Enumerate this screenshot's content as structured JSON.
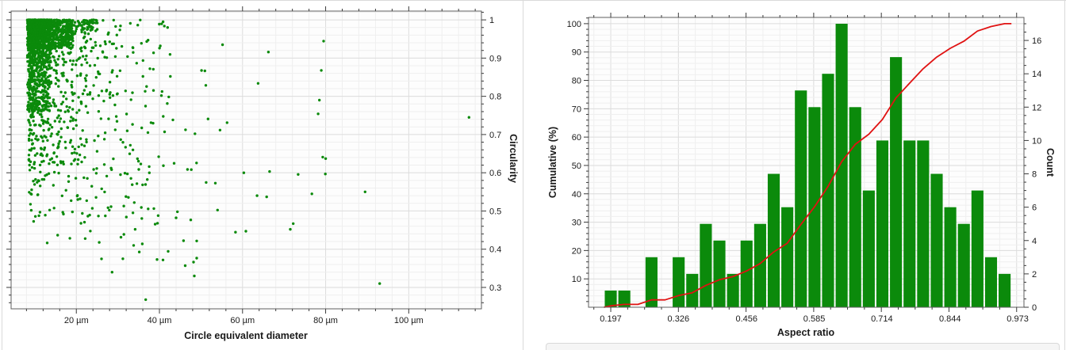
{
  "colors": {
    "point_green": "#0b8a0b",
    "bar_green": "#0b8a0b",
    "cumulative_red": "#e01212",
    "frame": "#5f5f5f",
    "tick": "#3a3a3a",
    "label_text": "#1a1a1a",
    "grid_major": "#dcdcdc",
    "grid_minor": "#efefef",
    "plot_bg": "#fdfdfd"
  },
  "chart_data": [
    {
      "type": "scatter",
      "title": "",
      "xlabel": "Circle equivalent diameter",
      "ylabel": "Circularity",
      "x_unit": "µm",
      "x_ticks": [
        20,
        40,
        60,
        80,
        100
      ],
      "x_tick_labels": [
        "20 µm",
        "40 µm",
        "60 µm",
        "80 µm",
        "100 µm"
      ],
      "x_minor_step": 4,
      "xlim": [
        4.3,
        117.5
      ],
      "y_ticks": [
        1,
        0.9,
        0.8,
        0.7,
        0.6,
        0.5,
        0.4,
        0.3
      ],
      "y_tick_labels": [
        "1",
        "0.9",
        "0.8",
        "0.7",
        "0.6",
        "0.5",
        "0.4",
        "0.3"
      ],
      "y_minor_step": 0.02,
      "ylim": [
        0.244,
        1.023
      ],
      "y_axis_side": "right",
      "grid": true,
      "point_radius": 1.7,
      "seed": 1337,
      "clusters": [
        {
          "n": 950,
          "x_min": 8.2,
          "x_span": 5.5,
          "x_pow": 1.0,
          "y_base": 1.0,
          "y_span": -0.24,
          "y_pow": 2.2
        },
        {
          "n": 520,
          "x_min": 8.2,
          "x_span": 11.0,
          "x_pow": 1.0,
          "y_base": 1.0,
          "y_span": -0.075,
          "y_pow": 1.0
        },
        {
          "n": 430,
          "x_min": 8.4,
          "x_span": 17.0,
          "x_pow": 1.6,
          "y_base": 1.0,
          "y_span": -0.38,
          "y_pow": 1.7
        },
        {
          "n": 300,
          "x_min": 8.6,
          "x_span": 34.0,
          "x_pow": 1.9,
          "y_base": 1.0,
          "y_span": -0.52,
          "y_pow": 1.5
        },
        {
          "n": 125,
          "x_min": 9.0,
          "x_span": 48.0,
          "x_pow": 1.7,
          "y_base": 0.97,
          "y_span": -0.62,
          "y_pow": 1.0
        },
        {
          "n": 42,
          "x_min": 12.0,
          "x_span": 68.0,
          "x_pow": 1.5,
          "y_base": 0.95,
          "y_span": -0.55,
          "y_pow": 1.0
        }
      ],
      "outlier_points": [
        [
          114.5,
          0.745
        ],
        [
          93.0,
          0.31
        ],
        [
          89.5,
          0.55
        ],
        [
          80.0,
          0.637
        ],
        [
          79.3,
          0.641
        ],
        [
          78.5,
          0.79
        ],
        [
          78.2,
          0.754
        ],
        [
          72.2,
          0.467
        ],
        [
          71.5,
          0.452
        ],
        [
          65.8,
          0.537
        ],
        [
          63.5,
          0.54
        ],
        [
          60.3,
          0.6
        ],
        [
          55.2,
          0.935
        ],
        [
          48.4,
          0.33
        ],
        [
          46.2,
          0.357
        ],
        [
          44.0,
          0.482
        ],
        [
          36.7,
          0.268
        ],
        [
          33.8,
          0.41
        ],
        [
          31.2,
          0.375
        ],
        [
          28.6,
          0.34
        ]
      ]
    },
    {
      "type": "bar",
      "title": "",
      "xlabel": "Aspect ratio",
      "ylabel_left": "Cumulative (%)",
      "ylabel_right": "Count",
      "x_ticks": [
        0.197,
        0.326,
        0.456,
        0.585,
        0.714,
        0.844,
        0.973
      ],
      "x_tick_labels": [
        "0.197",
        "0.326",
        "0.456",
        "0.585",
        "0.714",
        "0.844",
        "0.973"
      ],
      "x_minor_divisions": 4,
      "xlim": [
        0.1546,
        0.985
      ],
      "y_left_ticks": [
        10,
        20,
        30,
        40,
        50,
        60,
        70,
        80,
        90,
        100
      ],
      "y_left_minor_step": 2,
      "y_left_lim": [
        0,
        102.2
      ],
      "y_right_ticks": [
        0,
        2,
        4,
        6,
        8,
        10,
        12,
        14,
        16
      ],
      "y_right_minor_step": 0.5,
      "y_right_lim": [
        0,
        17.38
      ],
      "grid": true,
      "bin_first_center": 0.197,
      "bin_spacing": 0.0259,
      "counts": [
        1,
        1,
        0,
        3,
        0,
        3,
        2,
        5,
        4,
        2,
        4,
        5,
        8,
        6,
        13,
        12,
        14,
        17,
        12,
        7,
        10,
        15,
        10,
        10,
        8,
        6,
        5,
        7,
        3,
        2
      ],
      "total_count": 195,
      "cumulative_percent": [
        0.5,
        1.0,
        1.0,
        2.6,
        2.6,
        4.1,
        5.1,
        7.7,
        9.7,
        10.8,
        12.8,
        15.4,
        19.5,
        22.6,
        29.2,
        35.4,
        42.6,
        51.3,
        57.4,
        61.0,
        66.2,
        73.8,
        79.0,
        84.1,
        88.2,
        91.3,
        93.8,
        97.4,
        99.0,
        100.0
      ]
    }
  ],
  "scatter_panel": {
    "x_title": "Circle equivalent diameter",
    "y_title": "Circularity"
  },
  "histogram_panel": {
    "x_title": "Aspect ratio",
    "y_left_title": "Cumulative (%)",
    "y_right_title": "Count"
  }
}
